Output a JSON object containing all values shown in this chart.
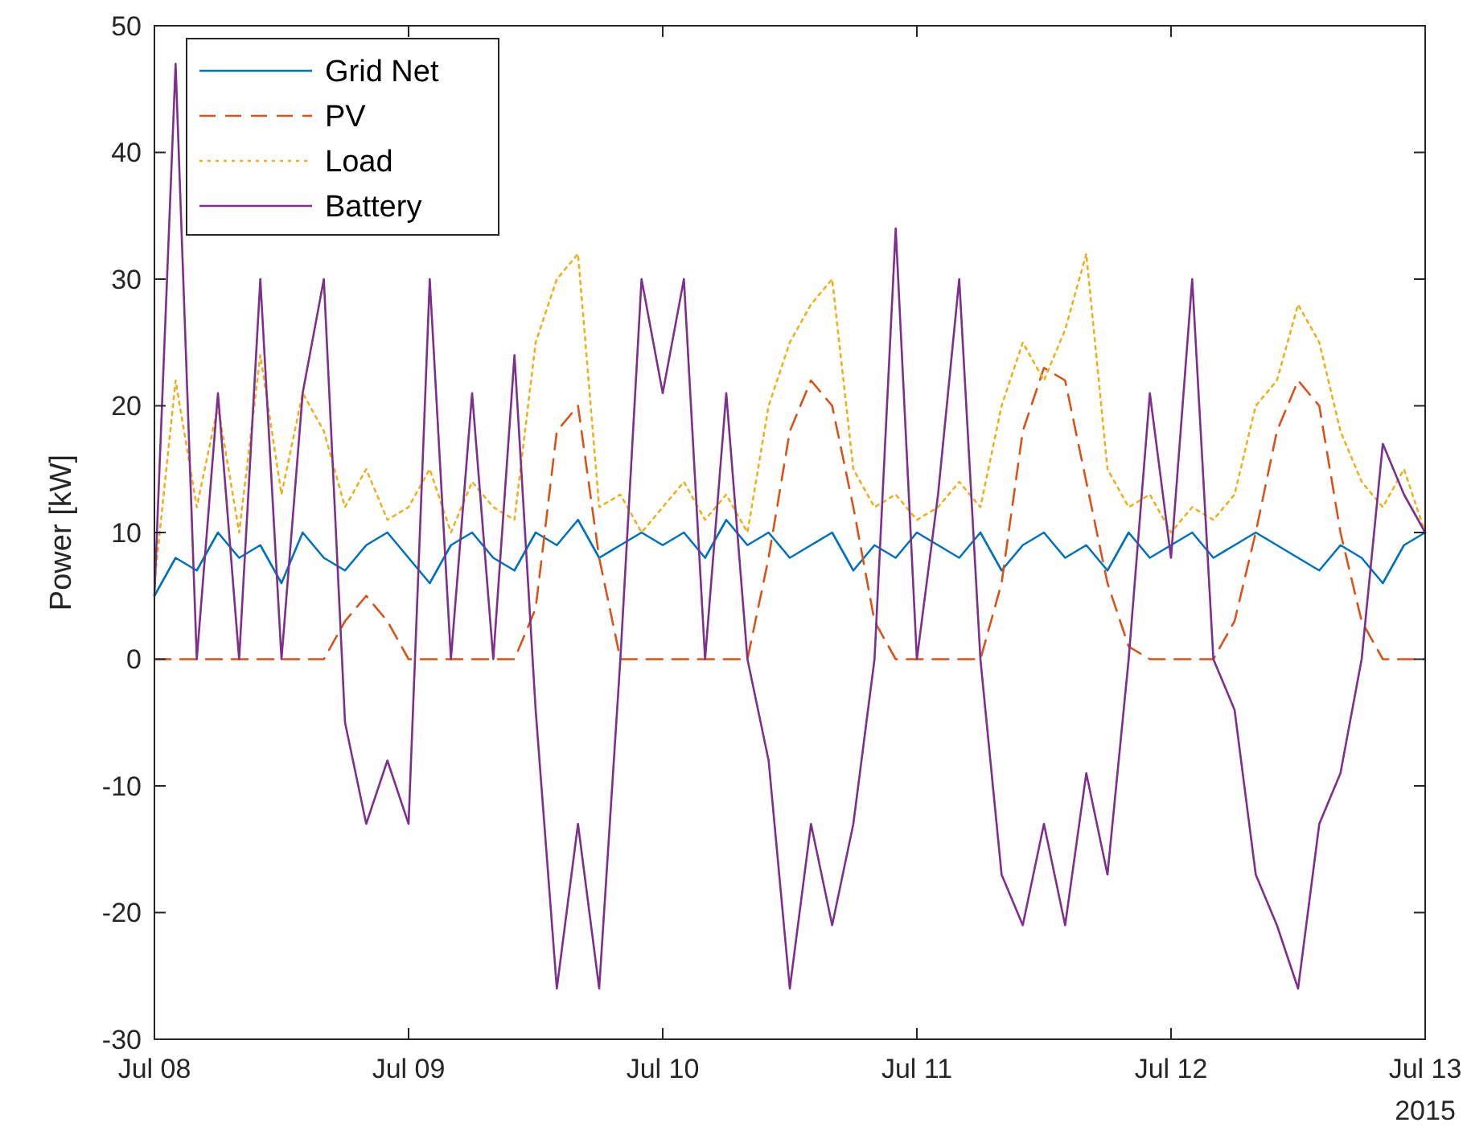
{
  "chart_data": {
    "type": "line",
    "ylabel": "Power [kW]",
    "annotations": [
      "2015"
    ],
    "legend": "top left",
    "grid": false,
    "xlim": [
      "2015-07-08",
      "2015-07-13"
    ],
    "xticks": [
      {
        "value": "2015-07-08",
        "label": "Jul 08"
      },
      {
        "value": "2015-07-09",
        "label": "Jul 09"
      },
      {
        "value": "2015-07-10",
        "label": "Jul 10"
      },
      {
        "value": "2015-07-11",
        "label": "Jul 11"
      },
      {
        "value": "2015-07-12",
        "label": "Jul 12"
      },
      {
        "value": "2015-07-13",
        "label": "Jul 13"
      }
    ],
    "ylim": [
      -30,
      50
    ],
    "yticks": [
      -30,
      -20,
      -10,
      0,
      10,
      20,
      30,
      40,
      50
    ],
    "x": [
      "2015-07-08T00:00",
      "2015-07-08T02:00",
      "2015-07-08T04:00",
      "2015-07-08T06:00",
      "2015-07-08T08:00",
      "2015-07-08T10:00",
      "2015-07-08T12:00",
      "2015-07-08T14:00",
      "2015-07-08T16:00",
      "2015-07-08T18:00",
      "2015-07-08T20:00",
      "2015-07-08T22:00",
      "2015-07-09T00:00",
      "2015-07-09T02:00",
      "2015-07-09T04:00",
      "2015-07-09T06:00",
      "2015-07-09T08:00",
      "2015-07-09T10:00",
      "2015-07-09T12:00",
      "2015-07-09T14:00",
      "2015-07-09T16:00",
      "2015-07-09T18:00",
      "2015-07-09T20:00",
      "2015-07-09T22:00",
      "2015-07-10T00:00",
      "2015-07-10T02:00",
      "2015-07-10T04:00",
      "2015-07-10T06:00",
      "2015-07-10T08:00",
      "2015-07-10T10:00",
      "2015-07-10T12:00",
      "2015-07-10T14:00",
      "2015-07-10T16:00",
      "2015-07-10T18:00",
      "2015-07-10T20:00",
      "2015-07-10T22:00",
      "2015-07-11T00:00",
      "2015-07-11T02:00",
      "2015-07-11T04:00",
      "2015-07-11T06:00",
      "2015-07-11T08:00",
      "2015-07-11T10:00",
      "2015-07-11T12:00",
      "2015-07-11T14:00",
      "2015-07-11T16:00",
      "2015-07-11T18:00",
      "2015-07-11T20:00",
      "2015-07-11T22:00",
      "2015-07-12T00:00",
      "2015-07-12T02:00",
      "2015-07-12T04:00",
      "2015-07-12T06:00",
      "2015-07-12T08:00",
      "2015-07-12T10:00",
      "2015-07-12T12:00",
      "2015-07-12T14:00",
      "2015-07-12T16:00",
      "2015-07-12T18:00",
      "2015-07-12T20:00",
      "2015-07-12T22:00",
      "2015-07-13T00:00"
    ],
    "series": [
      {
        "name": "Grid Net",
        "color": "#0072bd",
        "line_style": "solid",
        "values": [
          5,
          8,
          7,
          10,
          8,
          9,
          6,
          10,
          8,
          7,
          9,
          10,
          8,
          6,
          9,
          10,
          8,
          7,
          10,
          9,
          11,
          8,
          9,
          10,
          9,
          10,
          8,
          11,
          9,
          10,
          8,
          9,
          10,
          7,
          9,
          8,
          10,
          9,
          8,
          10,
          7,
          9,
          10,
          8,
          9,
          7,
          10,
          8,
          9,
          10,
          8,
          9,
          10,
          9,
          8,
          7,
          9,
          8,
          6,
          9,
          10
        ]
      },
      {
        "name": "PV",
        "color": "#d95319",
        "line_style": "dashed",
        "values": [
          0,
          0,
          0,
          0,
          0,
          0,
          0,
          0,
          0,
          3,
          5,
          3,
          0,
          0,
          0,
          0,
          0,
          0,
          4,
          18,
          20,
          8,
          0,
          0,
          0,
          0,
          0,
          0,
          0,
          8,
          18,
          22,
          20,
          12,
          3,
          0,
          0,
          0,
          0,
          0,
          6,
          18,
          23,
          22,
          14,
          6,
          1,
          0,
          0,
          0,
          0,
          3,
          10,
          18,
          22,
          20,
          10,
          3,
          0,
          0,
          0
        ]
      },
      {
        "name": "Load",
        "color": "#edb120",
        "line_style": "dotted",
        "values": [
          6,
          22,
          12,
          20,
          10,
          24,
          13,
          21,
          18,
          12,
          15,
          11,
          12,
          15,
          10,
          14,
          12,
          11,
          25,
          30,
          32,
          12,
          13,
          10,
          12,
          14,
          11,
          13,
          10,
          20,
          25,
          28,
          30,
          15,
          12,
          13,
          11,
          12,
          14,
          12,
          20,
          25,
          22,
          26,
          32,
          15,
          12,
          13,
          10,
          12,
          11,
          13,
          20,
          22,
          28,
          25,
          18,
          14,
          12,
          15,
          10
        ]
      },
      {
        "name": "Battery",
        "color": "#7e2f8e",
        "line_style": "solid",
        "values": [
          5,
          47,
          0,
          21,
          0,
          30,
          0,
          21,
          30,
          -5,
          -13,
          -8,
          -13,
          30,
          0,
          21,
          0,
          24,
          -4,
          -26,
          -13,
          -26,
          0,
          30,
          21,
          30,
          0,
          21,
          0,
          -8,
          -26,
          -13,
          -21,
          -13,
          0,
          34,
          0,
          13,
          30,
          0,
          -17,
          -21,
          -13,
          -21,
          -9,
          -17,
          0,
          21,
          8,
          30,
          0,
          -4,
          -17,
          -21,
          -26,
          -13,
          -9,
          0,
          17,
          13,
          10
        ]
      }
    ]
  }
}
